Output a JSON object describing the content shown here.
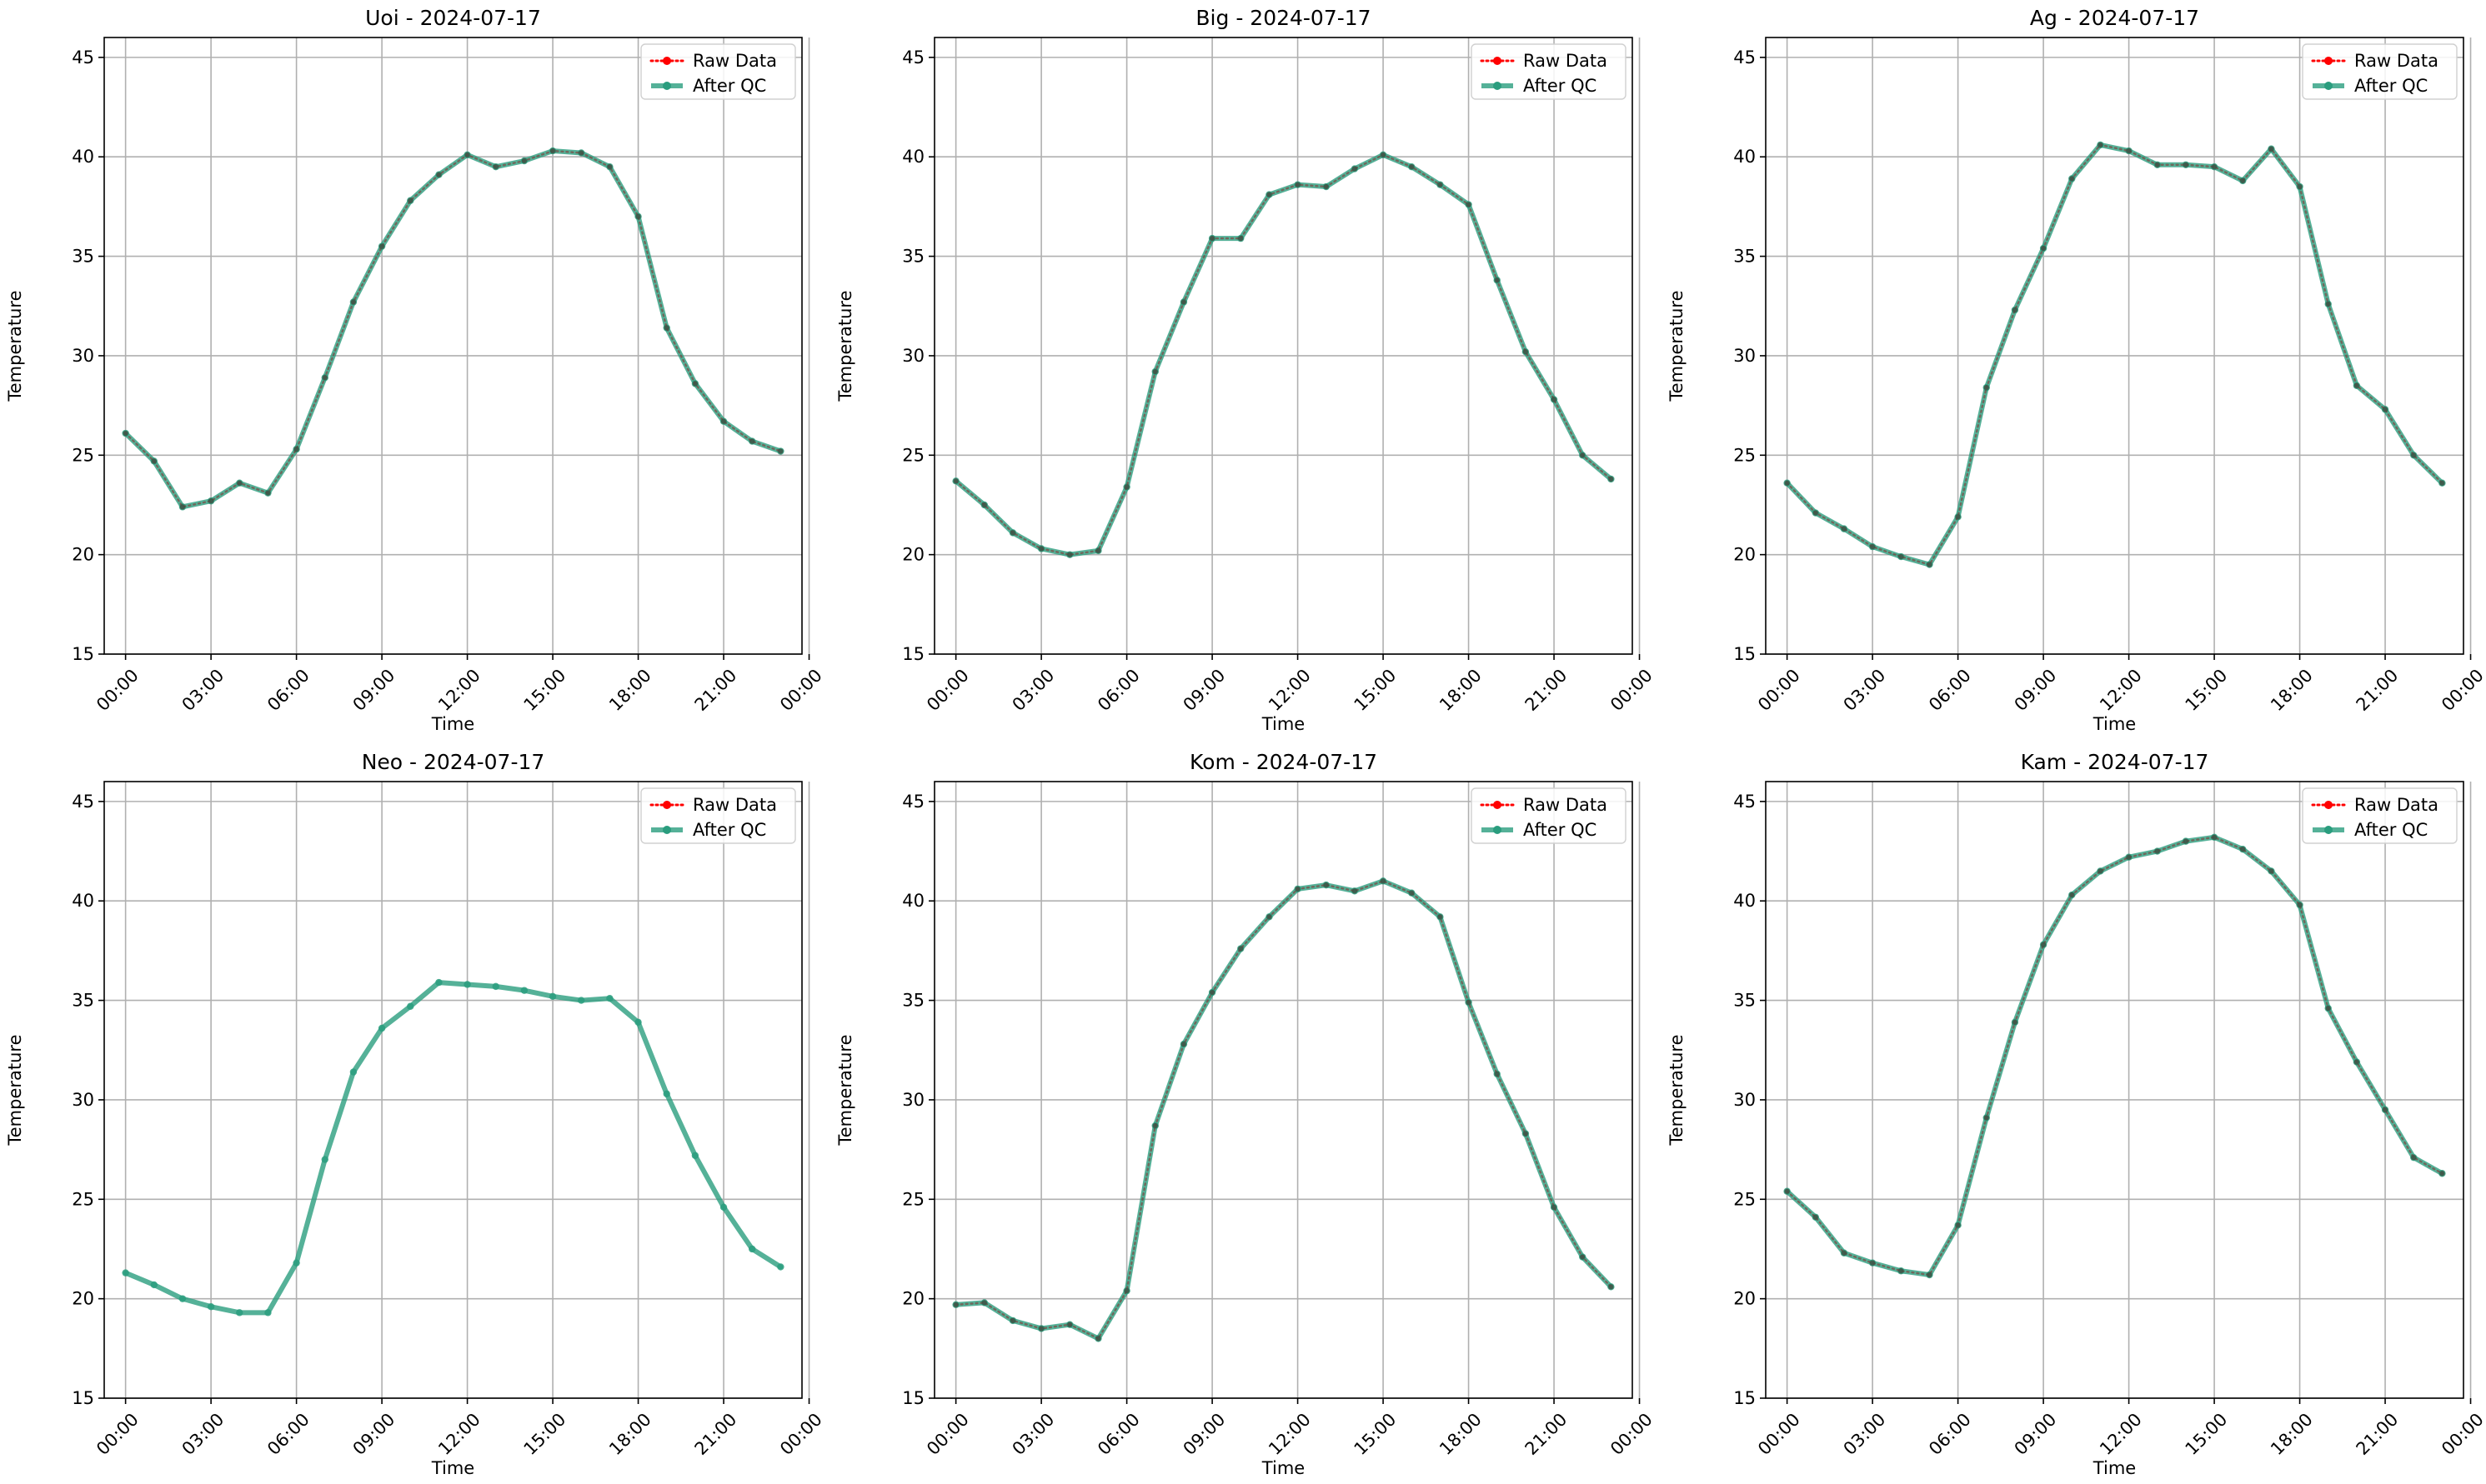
{
  "chart_data": [
    {
      "type": "line",
      "title": "Uoi - 2024-07-17",
      "xlabel": "Time",
      "ylabel": "Temperature",
      "ylim": [
        15,
        46
      ],
      "yticks": [
        15,
        20,
        25,
        30,
        35,
        40,
        45
      ],
      "xlim": [
        -0.75,
        23.75
      ],
      "xticks": [
        "00:00",
        "03:00",
        "06:00",
        "09:00",
        "12:00",
        "15:00",
        "18:00",
        "21:00",
        "00:00"
      ],
      "x": [
        "00:00",
        "01:00",
        "02:00",
        "03:00",
        "04:00",
        "05:00",
        "06:00",
        "07:00",
        "08:00",
        "09:00",
        "10:00",
        "11:00",
        "12:00",
        "13:00",
        "14:00",
        "15:00",
        "16:00",
        "17:00",
        "18:00",
        "19:00",
        "20:00",
        "21:00",
        "22:00",
        "23:00"
      ],
      "grid": true,
      "legend_position": "top-right",
      "show_raw_markers": true,
      "series": [
        {
          "name": "Raw Data",
          "color": "#ff0000",
          "style": "dotted",
          "values": [
            26.1,
            24.7,
            22.4,
            22.7,
            23.6,
            23.1,
            25.3,
            28.9,
            32.7,
            35.5,
            37.8,
            39.1,
            40.1,
            39.5,
            39.8,
            40.3,
            40.2,
            39.5,
            37.0,
            31.4,
            28.6,
            26.7,
            25.7,
            25.2
          ]
        },
        {
          "name": "After QC",
          "color": "#2a9d7e",
          "style": "solid",
          "values": [
            26.1,
            24.7,
            22.4,
            22.7,
            23.6,
            23.1,
            25.3,
            28.9,
            32.7,
            35.5,
            37.8,
            39.1,
            40.1,
            39.5,
            39.8,
            40.3,
            40.2,
            39.5,
            37.0,
            31.4,
            28.6,
            26.7,
            25.7,
            25.2
          ]
        }
      ]
    },
    {
      "type": "line",
      "title": "Big - 2024-07-17",
      "xlabel": "Time",
      "ylabel": "Temperature",
      "ylim": [
        15,
        46
      ],
      "yticks": [
        15,
        20,
        25,
        30,
        35,
        40,
        45
      ],
      "xlim": [
        -0.75,
        23.75
      ],
      "xticks": [
        "00:00",
        "03:00",
        "06:00",
        "09:00",
        "12:00",
        "15:00",
        "18:00",
        "21:00",
        "00:00"
      ],
      "x": [
        "00:00",
        "01:00",
        "02:00",
        "03:00",
        "04:00",
        "05:00",
        "06:00",
        "07:00",
        "08:00",
        "09:00",
        "10:00",
        "11:00",
        "12:00",
        "13:00",
        "14:00",
        "15:00",
        "16:00",
        "17:00",
        "18:00",
        "19:00",
        "20:00",
        "21:00",
        "22:00",
        "23:00"
      ],
      "grid": true,
      "legend_position": "top-right",
      "show_raw_markers": true,
      "series": [
        {
          "name": "Raw Data",
          "color": "#ff0000",
          "style": "dotted",
          "values": [
            23.7,
            22.5,
            21.1,
            20.3,
            20.0,
            20.2,
            23.4,
            29.2,
            32.7,
            35.9,
            35.9,
            38.1,
            38.6,
            38.5,
            39.4,
            40.1,
            39.5,
            38.6,
            37.6,
            33.8,
            30.2,
            27.8,
            25.0,
            23.8
          ]
        },
        {
          "name": "After QC",
          "color": "#2a9d7e",
          "style": "solid",
          "values": [
            23.7,
            22.5,
            21.1,
            20.3,
            20.0,
            20.2,
            23.4,
            29.2,
            32.7,
            35.9,
            35.9,
            38.1,
            38.6,
            38.5,
            39.4,
            40.1,
            39.5,
            38.6,
            37.6,
            33.8,
            30.2,
            27.8,
            25.0,
            23.8
          ]
        }
      ]
    },
    {
      "type": "line",
      "title": "Ag - 2024-07-17",
      "xlabel": "Time",
      "ylabel": "Temperature",
      "ylim": [
        15,
        46
      ],
      "yticks": [
        15,
        20,
        25,
        30,
        35,
        40,
        45
      ],
      "xlim": [
        -0.75,
        23.75
      ],
      "xticks": [
        "00:00",
        "03:00",
        "06:00",
        "09:00",
        "12:00",
        "15:00",
        "18:00",
        "21:00",
        "00:00"
      ],
      "x": [
        "00:00",
        "01:00",
        "02:00",
        "03:00",
        "04:00",
        "05:00",
        "06:00",
        "07:00",
        "08:00",
        "09:00",
        "10:00",
        "11:00",
        "12:00",
        "13:00",
        "14:00",
        "15:00",
        "16:00",
        "17:00",
        "18:00",
        "19:00",
        "20:00",
        "21:00",
        "22:00",
        "23:00"
      ],
      "grid": true,
      "legend_position": "top-right",
      "show_raw_markers": true,
      "series": [
        {
          "name": "Raw Data",
          "color": "#ff0000",
          "style": "dotted",
          "values": [
            23.6,
            22.1,
            21.3,
            20.4,
            19.9,
            19.5,
            21.9,
            28.4,
            32.3,
            35.4,
            38.9,
            40.6,
            40.3,
            39.6,
            39.6,
            39.5,
            38.8,
            40.4,
            38.5,
            32.6,
            28.5,
            27.3,
            25.0,
            23.6
          ]
        },
        {
          "name": "After QC",
          "color": "#2a9d7e",
          "style": "solid",
          "values": [
            23.6,
            22.1,
            21.3,
            20.4,
            19.9,
            19.5,
            21.9,
            28.4,
            32.3,
            35.4,
            38.9,
            40.6,
            40.3,
            39.6,
            39.6,
            39.5,
            38.8,
            40.4,
            38.5,
            32.6,
            28.5,
            27.3,
            25.0,
            23.6
          ]
        }
      ]
    },
    {
      "type": "line",
      "title": "Neo - 2024-07-17",
      "xlabel": "Time",
      "ylabel": "Temperature",
      "ylim": [
        15,
        46
      ],
      "yticks": [
        15,
        20,
        25,
        30,
        35,
        40,
        45
      ],
      "xlim": [
        -0.75,
        23.75
      ],
      "xticks": [
        "00:00",
        "03:00",
        "06:00",
        "09:00",
        "12:00",
        "15:00",
        "18:00",
        "21:00",
        "00:00"
      ],
      "x": [
        "00:00",
        "01:00",
        "02:00",
        "03:00",
        "04:00",
        "05:00",
        "06:00",
        "07:00",
        "08:00",
        "09:00",
        "10:00",
        "11:00",
        "12:00",
        "13:00",
        "14:00",
        "15:00",
        "16:00",
        "17:00",
        "18:00",
        "19:00",
        "20:00",
        "21:00",
        "22:00",
        "23:00"
      ],
      "grid": true,
      "legend_position": "top-right",
      "show_raw_markers": false,
      "series": [
        {
          "name": "Raw Data",
          "color": "#ff0000",
          "style": "dotted",
          "values": [
            21.3,
            20.7,
            20.0,
            19.6,
            19.3,
            19.3,
            21.8,
            27.0,
            31.4,
            33.6,
            34.7,
            35.9,
            35.8,
            35.7,
            35.5,
            35.2,
            35.0,
            35.1,
            33.9,
            30.3,
            27.2,
            24.6,
            22.5,
            21.6
          ]
        },
        {
          "name": "After QC",
          "color": "#2a9d7e",
          "style": "solid",
          "values": [
            21.3,
            20.7,
            20.0,
            19.6,
            19.3,
            19.3,
            21.8,
            27.0,
            31.4,
            33.6,
            34.7,
            35.9,
            35.8,
            35.7,
            35.5,
            35.2,
            35.0,
            35.1,
            33.9,
            30.3,
            27.2,
            24.6,
            22.5,
            21.6
          ]
        }
      ]
    },
    {
      "type": "line",
      "title": "Kom - 2024-07-17",
      "xlabel": "Time",
      "ylabel": "Temperature",
      "ylim": [
        15,
        46
      ],
      "yticks": [
        15,
        20,
        25,
        30,
        35,
        40,
        45
      ],
      "xlim": [
        -0.75,
        23.75
      ],
      "xticks": [
        "00:00",
        "03:00",
        "06:00",
        "09:00",
        "12:00",
        "15:00",
        "18:00",
        "21:00",
        "00:00"
      ],
      "x": [
        "00:00",
        "01:00",
        "02:00",
        "03:00",
        "04:00",
        "05:00",
        "06:00",
        "07:00",
        "08:00",
        "09:00",
        "10:00",
        "11:00",
        "12:00",
        "13:00",
        "14:00",
        "15:00",
        "16:00",
        "17:00",
        "18:00",
        "19:00",
        "20:00",
        "21:00",
        "22:00",
        "23:00"
      ],
      "grid": true,
      "legend_position": "top-right",
      "show_raw_markers": true,
      "series": [
        {
          "name": "Raw Data",
          "color": "#ff0000",
          "style": "dotted",
          "values": [
            19.7,
            19.8,
            18.9,
            18.5,
            18.7,
            18.0,
            20.4,
            28.7,
            32.8,
            35.4,
            37.6,
            39.2,
            40.6,
            40.8,
            40.5,
            41.0,
            40.4,
            39.2,
            34.9,
            31.3,
            28.3,
            24.6,
            22.1,
            20.6
          ]
        },
        {
          "name": "After QC",
          "color": "#2a9d7e",
          "style": "solid",
          "values": [
            19.7,
            19.8,
            18.9,
            18.5,
            18.7,
            18.0,
            20.4,
            28.7,
            32.8,
            35.4,
            37.6,
            39.2,
            40.6,
            40.8,
            40.5,
            41.0,
            40.4,
            39.2,
            34.9,
            31.3,
            28.3,
            24.6,
            22.1,
            20.6
          ]
        }
      ]
    },
    {
      "type": "line",
      "title": "Kam - 2024-07-17",
      "xlabel": "Time",
      "ylabel": "Temperature",
      "ylim": [
        15,
        46
      ],
      "yticks": [
        15,
        20,
        25,
        30,
        35,
        40,
        45
      ],
      "xlim": [
        -0.75,
        23.75
      ],
      "xticks": [
        "00:00",
        "03:00",
        "06:00",
        "09:00",
        "12:00",
        "15:00",
        "18:00",
        "21:00",
        "00:00"
      ],
      "x": [
        "00:00",
        "01:00",
        "02:00",
        "03:00",
        "04:00",
        "05:00",
        "06:00",
        "07:00",
        "08:00",
        "09:00",
        "10:00",
        "11:00",
        "12:00",
        "13:00",
        "14:00",
        "15:00",
        "16:00",
        "17:00",
        "18:00",
        "19:00",
        "20:00",
        "21:00",
        "22:00",
        "23:00"
      ],
      "grid": true,
      "legend_position": "top-right",
      "show_raw_markers": true,
      "series": [
        {
          "name": "Raw Data",
          "color": "#ff0000",
          "style": "dotted",
          "values": [
            25.4,
            24.1,
            22.3,
            21.8,
            21.4,
            21.2,
            23.7,
            29.1,
            33.9,
            37.8,
            40.3,
            41.5,
            42.2,
            42.5,
            43.0,
            43.2,
            42.6,
            41.5,
            39.8,
            34.6,
            31.9,
            29.5,
            27.1,
            26.3
          ]
        },
        {
          "name": "After QC",
          "color": "#2a9d7e",
          "style": "solid",
          "values": [
            25.4,
            24.1,
            22.3,
            21.8,
            21.4,
            21.2,
            23.7,
            29.1,
            33.9,
            37.8,
            40.3,
            41.5,
            42.2,
            42.5,
            43.0,
            43.2,
            42.6,
            41.5,
            39.8,
            34.6,
            31.9,
            29.5,
            27.1,
            26.3
          ]
        }
      ]
    }
  ]
}
